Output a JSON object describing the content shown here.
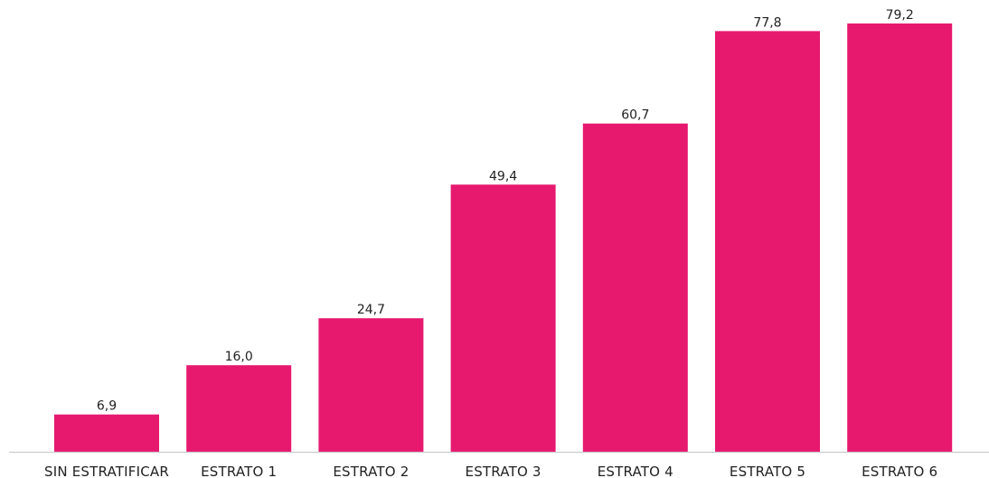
{
  "chart_data": {
    "type": "bar",
    "categories": [
      "SIN ESTRATIFICAR",
      "ESTRATO 1",
      "ESTRATO 2",
      "ESTRATO 3",
      "ESTRATO 4",
      "ESTRATO 5",
      "ESTRATO 6"
    ],
    "values": [
      6.9,
      16.0,
      24.7,
      49.4,
      60.7,
      77.8,
      79.2
    ],
    "value_labels": [
      "6,9",
      "16,0",
      "24,7",
      "49,4",
      "60,7",
      "77,8",
      "79,2"
    ],
    "title": "",
    "xlabel": "",
    "ylabel": "",
    "ylim": [
      0,
      80
    ],
    "grid": false,
    "legend": "none",
    "colors": {
      "bar": "#e6196f",
      "axis": "#cccccc",
      "text": "#222222"
    }
  }
}
